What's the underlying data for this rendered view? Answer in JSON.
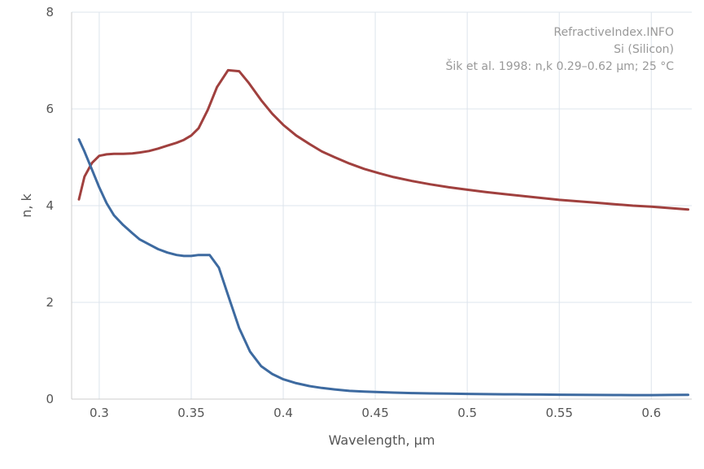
{
  "chart_data": {
    "type": "line",
    "xlabel": "Wavelength, µm",
    "ylabel": "n, k",
    "xlim": [
      0.285,
      0.622
    ],
    "ylim": [
      0,
      8
    ],
    "xticks": [
      0.3,
      0.35,
      0.4,
      0.45,
      0.5,
      0.55,
      0.6
    ],
    "xtick_labels": [
      "0.3",
      "0.35",
      "0.4",
      "0.45",
      "0.5",
      "0.55",
      "0.6"
    ],
    "yticks": [
      0,
      2,
      4,
      6,
      8
    ],
    "ytick_labels": [
      "0",
      "2",
      "4",
      "6",
      "8"
    ],
    "grid": true,
    "annotations": [
      "RefractiveIndex.INFO",
      "Si (Silicon)",
      "Šik et al. 1998: n,k 0.29–0.62 µm; 25 °C"
    ],
    "series": [
      {
        "color": "#a0403e",
        "x": [
          0.289,
          0.292,
          0.296,
          0.3,
          0.304,
          0.308,
          0.313,
          0.318,
          0.322,
          0.327,
          0.332,
          0.337,
          0.342,
          0.346,
          0.35,
          0.354,
          0.359,
          0.364,
          0.37,
          0.376,
          0.381,
          0.388,
          0.394,
          0.4,
          0.407,
          0.414,
          0.421,
          0.428,
          0.436,
          0.444,
          0.452,
          0.46,
          0.47,
          0.48,
          0.49,
          0.5,
          0.51,
          0.52,
          0.53,
          0.54,
          0.55,
          0.56,
          0.57,
          0.58,
          0.59,
          0.6,
          0.61,
          0.62
        ],
        "values": [
          4.13,
          4.6,
          4.88,
          5.03,
          5.06,
          5.07,
          5.07,
          5.08,
          5.1,
          5.13,
          5.18,
          5.24,
          5.3,
          5.36,
          5.45,
          5.6,
          5.98,
          6.45,
          6.8,
          6.78,
          6.55,
          6.18,
          5.9,
          5.67,
          5.45,
          5.28,
          5.12,
          5.0,
          4.87,
          4.76,
          4.67,
          4.59,
          4.51,
          4.44,
          4.38,
          4.33,
          4.28,
          4.24,
          4.2,
          4.16,
          4.12,
          4.09,
          4.06,
          4.03,
          4.0,
          3.98,
          3.95,
          3.92
        ]
      },
      {
        "color": "#3d6aa0",
        "x": [
          0.289,
          0.292,
          0.296,
          0.3,
          0.304,
          0.308,
          0.313,
          0.318,
          0.322,
          0.327,
          0.332,
          0.337,
          0.342,
          0.346,
          0.35,
          0.354,
          0.36,
          0.365,
          0.37,
          0.376,
          0.382,
          0.388,
          0.394,
          0.4,
          0.407,
          0.414,
          0.421,
          0.428,
          0.436,
          0.444,
          0.452,
          0.46,
          0.47,
          0.48,
          0.49,
          0.5,
          0.51,
          0.52,
          0.53,
          0.54,
          0.55,
          0.56,
          0.57,
          0.58,
          0.59,
          0.6,
          0.61,
          0.62
        ],
        "values": [
          5.37,
          5.12,
          4.75,
          4.38,
          4.05,
          3.8,
          3.6,
          3.43,
          3.3,
          3.2,
          3.1,
          3.03,
          2.98,
          2.96,
          2.96,
          2.98,
          2.98,
          2.72,
          2.15,
          1.47,
          0.98,
          0.68,
          0.52,
          0.41,
          0.33,
          0.27,
          0.23,
          0.2,
          0.17,
          0.155,
          0.145,
          0.135,
          0.125,
          0.118,
          0.112,
          0.107,
          0.103,
          0.1,
          0.097,
          0.094,
          0.09,
          0.088,
          0.086,
          0.084,
          0.083,
          0.083,
          0.085,
          0.087
        ]
      }
    ]
  }
}
